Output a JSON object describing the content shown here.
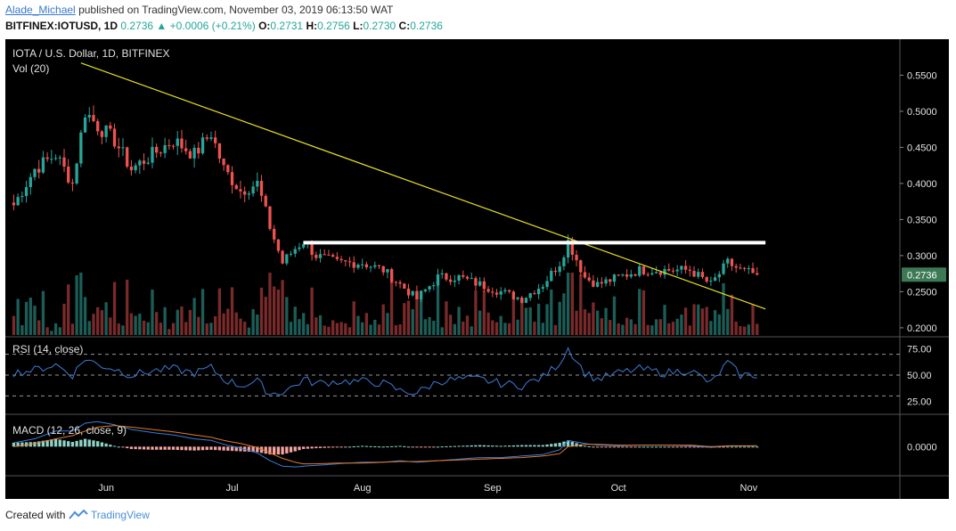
{
  "header": {
    "author": "Alade_Michael",
    "published": "published on TradingView.com, November 03, 2019 06:13:50 WAT",
    "symbol": "BITFINEX:IOTUSD, 1D",
    "last": "0.2736",
    "arrow": "▲",
    "change": "+0.0006 (+0.21%)",
    "o_label": "O:",
    "o": "0.2731",
    "h_label": "H:",
    "h": "0.2756",
    "l_label": "L:",
    "l": "0.2730",
    "c_label": "C:",
    "c": "0.2736"
  },
  "chart_data": [
    {
      "type": "candlestick",
      "title": "IOTA / U.S. Dollar, 1D, BITFINEX",
      "volume_label": "Vol (20)",
      "x_ticks": [
        "Jun",
        "Jul",
        "Aug",
        "Sep",
        "Oct",
        "Nov"
      ],
      "y_ticks": [
        "0.5500",
        "0.5000",
        "0.4500",
        "0.4000",
        "0.3500",
        "0.3000",
        "0.2500",
        "0.2000"
      ],
      "ylim": [
        0.19,
        0.59
      ],
      "last_price_label": "0.2736",
      "close_series": {
        "dates": [
          "2019-05-10",
          "2019-05-15",
          "2019-05-20",
          "2019-05-24",
          "2019-05-27",
          "2019-05-30",
          "2019-06-03",
          "2019-06-07",
          "2019-06-12",
          "2019-06-17",
          "2019-06-22",
          "2019-06-26",
          "2019-06-29",
          "2019-07-03",
          "2019-07-07",
          "2019-07-10",
          "2019-07-13",
          "2019-07-16",
          "2019-07-18",
          "2019-07-21",
          "2019-07-26",
          "2019-08-01",
          "2019-08-06",
          "2019-08-10",
          "2019-08-14",
          "2019-08-19",
          "2019-08-24",
          "2019-08-29",
          "2019-09-03",
          "2019-09-08",
          "2019-09-13",
          "2019-09-17",
          "2019-09-19",
          "2019-09-23",
          "2019-09-26",
          "2019-10-01",
          "2019-10-06",
          "2019-10-12",
          "2019-10-18",
          "2019-10-23",
          "2019-10-27",
          "2019-10-30",
          "2019-11-03"
        ],
        "close": [
          0.37,
          0.42,
          0.44,
          0.4,
          0.5,
          0.48,
          0.46,
          0.42,
          0.44,
          0.46,
          0.44,
          0.47,
          0.42,
          0.39,
          0.4,
          0.34,
          0.29,
          0.31,
          0.32,
          0.3,
          0.29,
          0.29,
          0.28,
          0.26,
          0.24,
          0.27,
          0.27,
          0.26,
          0.25,
          0.24,
          0.26,
          0.29,
          0.32,
          0.27,
          0.26,
          0.27,
          0.28,
          0.28,
          0.28,
          0.26,
          0.29,
          0.28,
          0.2736
        ]
      },
      "resistance_level": 0.318,
      "trendline": {
        "start": [
          "2019-05-26",
          0.567
        ],
        "end": [
          "2019-11-05",
          0.226
        ]
      }
    },
    {
      "type": "line",
      "title": "RSI (14, close)",
      "y_ticks": [
        "75.00",
        "50.00",
        "25.00"
      ],
      "ylim": [
        15,
        85
      ],
      "bands": [
        70,
        50,
        30
      ],
      "values": [
        52,
        55,
        60,
        50,
        66,
        60,
        56,
        50,
        54,
        56,
        52,
        57,
        46,
        40,
        44,
        32,
        34,
        40,
        46,
        42,
        44,
        44,
        42,
        35,
        33,
        44,
        46,
        46,
        42,
        40,
        48,
        62,
        76,
        52,
        46,
        52,
        56,
        52,
        55,
        42,
        62,
        50,
        50
      ]
    },
    {
      "type": "line",
      "title": "MACD (12, 26, close, 9)",
      "y_ticks": [
        "0.0000"
      ],
      "ylim": [
        -0.035,
        0.038
      ],
      "series": [
        {
          "values": [
            0.005,
            0.01,
            0.02,
            0.02,
            0.03,
            0.032,
            0.028,
            0.022,
            0.018,
            0.015,
            0.01,
            0.008,
            0.003,
            -0.002,
            -0.008,
            -0.018,
            -0.025,
            -0.026,
            -0.025,
            -0.024,
            -0.022,
            -0.02,
            -0.02,
            -0.018,
            -0.02,
            -0.018,
            -0.016,
            -0.014,
            -0.014,
            -0.012,
            -0.01,
            -0.004,
            0.008,
            0.004,
            0.002,
            0.001,
            0.002,
            0.002,
            0.001,
            -0.001,
            0.001,
            0.001,
            0.001
          ]
        },
        {
          "values": [
            0.0,
            0.004,
            0.01,
            0.014,
            0.02,
            0.025,
            0.027,
            0.025,
            0.022,
            0.019,
            0.015,
            0.012,
            0.008,
            0.004,
            -0.001,
            -0.008,
            -0.015,
            -0.02,
            -0.022,
            -0.022,
            -0.021,
            -0.021,
            -0.02,
            -0.019,
            -0.019,
            -0.018,
            -0.017,
            -0.016,
            -0.015,
            -0.014,
            -0.012,
            -0.009,
            0.0,
            0.003,
            0.003,
            0.002,
            0.002,
            0.002,
            0.002,
            0.0,
            0.001,
            0.001,
            0.001
          ]
        }
      ]
    }
  ],
  "colors": {
    "up": "#26a69a",
    "down": "#ef5350",
    "trendline": "#e8e025",
    "resistance": "#ffffff",
    "rsi": "#3d7bd6",
    "macd": "#3d7bd6",
    "signal": "#e07a2c"
  },
  "footer": {
    "created": "Created with",
    "brand": "TradingView"
  }
}
